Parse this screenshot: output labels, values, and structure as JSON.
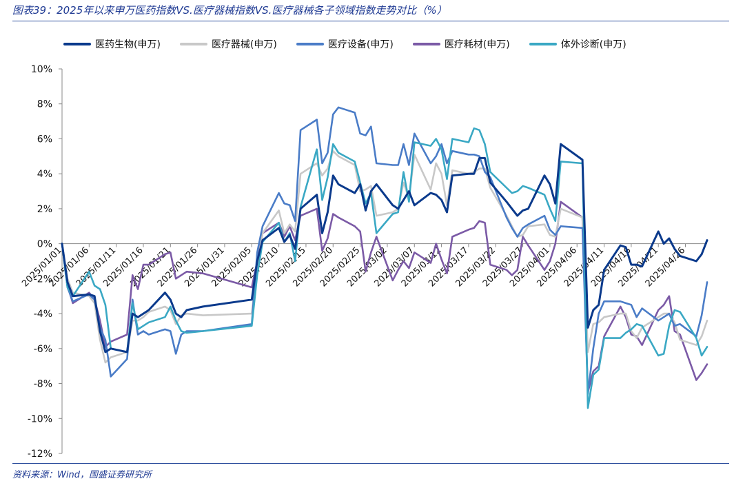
{
  "header": {
    "title": "图表39：2025年以来申万医药指数VS.医疗器械指数VS.医疗器械各子领域指数走势对比（%）"
  },
  "footer": {
    "source": "资料来源：Wind，国盛证券研究所"
  },
  "chart_data": {
    "type": "line",
    "yunit": "%",
    "ylim": [
      -12,
      10
    ],
    "yticks": [
      -12,
      -10,
      -8,
      -6,
      -4,
      -2,
      0,
      2,
      4,
      6,
      8,
      10
    ],
    "ytick_labels": [
      "-12%",
      "-10%",
      "-8%",
      "-6%",
      "-4%",
      "-2%",
      "0%",
      "2%",
      "4%",
      "6%",
      "8%",
      "10%"
    ],
    "xlim": [
      "2025-01-01",
      "2025-04-30"
    ],
    "xtick_dates": [
      "2025-01-01",
      "2025-01-06",
      "2025-01-11",
      "2025-01-16",
      "2025-01-21",
      "2025-01-26",
      "2025-01-31",
      "2025-02-05",
      "2025-02-10",
      "2025-02-15",
      "2025-02-20",
      "2025-02-25",
      "2025-03-02",
      "2025-03-07",
      "2025-03-12",
      "2025-03-17",
      "2025-03-22",
      "2025-03-27",
      "2025-04-01",
      "2025-04-06",
      "2025-04-11",
      "2025-04-16",
      "2025-04-21",
      "2025-04-26"
    ],
    "xtick_labels": [
      "2025/01/01",
      "2025/01/06",
      "2025/01/11",
      "2025/01/16",
      "2025/01/21",
      "2025/01/26",
      "2025/01/31",
      "2025/02/05",
      "2025/02/10",
      "2025/02/15",
      "2025/02/20",
      "2025/02/25",
      "2025/03/02",
      "2025/03/07",
      "2025/03/12",
      "2025/03/17",
      "2025/03/22",
      "2025/03/27",
      "2025/04/01",
      "2025/04/06",
      "2025/04/11",
      "2025/04/16",
      "2025/04/21",
      "2025/04/26"
    ],
    "legend_position": "top",
    "grid": false,
    "x": [
      "2025-01-01",
      "2025-01-02",
      "2025-01-03",
      "2025-01-06",
      "2025-01-07",
      "2025-01-08",
      "2025-01-09",
      "2025-01-10",
      "2025-01-13",
      "2025-01-14",
      "2025-01-15",
      "2025-01-16",
      "2025-01-17",
      "2025-01-20",
      "2025-01-21",
      "2025-01-22",
      "2025-01-23",
      "2025-01-24",
      "2025-01-27",
      "2025-02-05",
      "2025-02-06",
      "2025-02-07",
      "2025-02-10",
      "2025-02-11",
      "2025-02-12",
      "2025-02-13",
      "2025-02-14",
      "2025-02-17",
      "2025-02-18",
      "2025-02-19",
      "2025-02-20",
      "2025-02-21",
      "2025-02-24",
      "2025-02-25",
      "2025-02-26",
      "2025-02-27",
      "2025-02-28",
      "2025-03-03",
      "2025-03-04",
      "2025-03-05",
      "2025-03-06",
      "2025-03-07",
      "2025-03-10",
      "2025-03-11",
      "2025-03-12",
      "2025-03-13",
      "2025-03-14",
      "2025-03-17",
      "2025-03-18",
      "2025-03-19",
      "2025-03-20",
      "2025-03-21",
      "2025-03-24",
      "2025-03-25",
      "2025-03-26",
      "2025-03-27",
      "2025-03-28",
      "2025-03-31",
      "2025-04-01",
      "2025-04-02",
      "2025-04-03",
      "2025-04-07",
      "2025-04-08",
      "2025-04-09",
      "2025-04-10",
      "2025-04-11",
      "2025-04-14",
      "2025-04-15",
      "2025-04-16",
      "2025-04-17",
      "2025-04-18",
      "2025-04-21",
      "2025-04-22",
      "2025-04-23",
      "2025-04-24",
      "2025-04-25",
      "2025-04-28",
      "2025-04-29",
      "2025-04-30"
    ],
    "series": [
      {
        "name": "医药生物(申万)",
        "color": "#0b3a8c",
        "values": [
          0,
          -2.2,
          -3.0,
          -2.9,
          -3.0,
          -5.0,
          -6.2,
          -6.0,
          -6.2,
          -4.0,
          -4.2,
          -4.0,
          -3.8,
          -2.8,
          -3.2,
          -4.0,
          -4.2,
          -3.8,
          -3.6,
          -3.2,
          -1.0,
          0.2,
          0.9,
          0.1,
          0.5,
          -0.3,
          2.0,
          2.8,
          0.6,
          1.8,
          3.9,
          3.4,
          2.9,
          3.4,
          1.9,
          3.0,
          3.4,
          2.2,
          2.0,
          2.5,
          3.0,
          2.2,
          2.9,
          2.8,
          2.5,
          1.8,
          3.9,
          4.0,
          4.0,
          4.9,
          4.9,
          3.5,
          2.4,
          2.0,
          1.6,
          1.9,
          2.0,
          3.9,
          3.4,
          2.3,
          5.7,
          4.8,
          -4.8,
          -3.8,
          -3.5,
          -1.5,
          -0.1,
          -0.2,
          -1.2,
          -1.2,
          -1.3,
          0.7,
          0.0,
          0.3,
          -0.3,
          -0.7,
          -1.0,
          -0.6,
          0.2
        ]
      },
      {
        "name": "医疗器械(申万)",
        "color": "#c8c8c8",
        "values": [
          0,
          -2.0,
          -2.8,
          -3.0,
          -3.4,
          -5.5,
          -6.8,
          -6.5,
          -6.2,
          -4.4,
          -4.4,
          -4.2,
          -3.9,
          -3.6,
          -3.8,
          -4.6,
          -4.1,
          -4.0,
          -4.1,
          -4.0,
          -1.2,
          0.6,
          1.9,
          0.6,
          1.1,
          0.7,
          4.0,
          4.6,
          3.9,
          4.3,
          5.3,
          5.0,
          4.5,
          3.0,
          3.1,
          3.3,
          1.6,
          1.8,
          2.0,
          3.5,
          2.6,
          5.1,
          3.1,
          4.6,
          4.0,
          2.2,
          4.2,
          4.0,
          4.1,
          4.3,
          4.3,
          3.2,
          1.6,
          1.0,
          0.4,
          0.5,
          1.0,
          1.1,
          0.5,
          0.4,
          2.0,
          1.5,
          -6.2,
          -4.6,
          -4.5,
          -4.2,
          -4.0,
          -4.0,
          -5.0,
          -5.4,
          -4.8,
          -4.2,
          -4.0,
          -4.0,
          -4.5,
          -5.5,
          -5.8,
          -5.3,
          -4.4
        ]
      },
      {
        "name": "医疗设备(申万)",
        "color": "#4a7cc7",
        "values": [
          0,
          -2.5,
          -3.3,
          -2.9,
          -3.2,
          -4.8,
          -5.5,
          -7.6,
          -6.6,
          -3.2,
          -5.2,
          -5.0,
          -5.2,
          -4.9,
          -5.0,
          -6.3,
          -5.2,
          -5.0,
          -5.0,
          -4.6,
          -0.5,
          1.0,
          2.9,
          2.3,
          2.2,
          1.3,
          6.5,
          7.1,
          4.6,
          5.2,
          7.4,
          7.8,
          7.5,
          6.3,
          6.2,
          6.7,
          4.6,
          4.5,
          4.5,
          5.7,
          4.5,
          6.3,
          4.6,
          5.0,
          5.7,
          4.6,
          5.3,
          5.1,
          5.1,
          5.0,
          4.1,
          3.8,
          1.5,
          0.9,
          0.4,
          0.9,
          1.1,
          1.6,
          0.8,
          0.5,
          1.0,
          0.9,
          -8.6,
          -6.0,
          -4.0,
          -3.3,
          -3.3,
          -3.4,
          -3.5,
          -4.2,
          -3.7,
          -4.4,
          -4.2,
          -4.0,
          -4.7,
          -4.6,
          -5.3,
          -4.1,
          -2.2
        ]
      },
      {
        "name": "医疗耗材(申万)",
        "color": "#7b5aa6",
        "values": [
          0,
          -2.4,
          -3.4,
          -2.8,
          -3.2,
          -4.4,
          -5.9,
          -5.6,
          -5.2,
          -1.8,
          -2.6,
          -1.2,
          -1.2,
          -0.6,
          -0.5,
          -2.0,
          -1.8,
          -1.6,
          -1.7,
          -2.5,
          -1.0,
          0.6,
          1.2,
          0.4,
          1.0,
          0.2,
          1.6,
          2.0,
          -0.4,
          0.3,
          1.7,
          1.5,
          1.0,
          0.7,
          -1.6,
          -0.5,
          0.4,
          -2.1,
          -1.5,
          -1.0,
          -1.4,
          -0.5,
          -1.1,
          0.0,
          -0.9,
          -1.7,
          0.4,
          0.8,
          0.9,
          1.3,
          1.2,
          -1.2,
          -1.5,
          -1.8,
          -1.5,
          0.4,
          -0.1,
          -1.5,
          -1.0,
          0.0,
          2.4,
          1.5,
          -8.5,
          -7.3,
          -7.0,
          -5.3,
          -3.6,
          -4.2,
          -5.2,
          -5.3,
          -5.8,
          -3.8,
          -3.5,
          -3.0,
          -5.0,
          -5.2,
          -7.8,
          -7.4,
          -6.9
        ]
      },
      {
        "name": "体外诊断(申万)",
        "color": "#3aa8c4",
        "values": [
          0,
          -2.5,
          -3.0,
          -1.6,
          -2.4,
          -2.6,
          -3.5,
          -6.0,
          -6.2,
          -3.4,
          -4.9,
          -4.7,
          -4.5,
          -4.2,
          -3.6,
          -4.4,
          -5.0,
          -5.1,
          -5.0,
          -4.7,
          -1.8,
          0.1,
          1.2,
          0.1,
          0.6,
          -1.0,
          2.1,
          5.4,
          2.5,
          3.8,
          5.7,
          5.2,
          4.7,
          3.5,
          2.3,
          2.9,
          0.6,
          1.7,
          1.8,
          4.1,
          2.4,
          5.8,
          5.6,
          6.0,
          5.4,
          3.7,
          6.0,
          5.8,
          6.6,
          6.5,
          5.7,
          4.1,
          3.2,
          2.9,
          3.0,
          3.3,
          3.2,
          2.8,
          2.0,
          1.3,
          4.7,
          4.6,
          -9.4,
          -7.5,
          -7.2,
          -5.4,
          -5.4,
          -5.1,
          -4.9,
          -4.6,
          -4.7,
          -6.4,
          -6.3,
          -4.7,
          -3.8,
          -3.9,
          -5.4,
          -6.4,
          -5.9
        ]
      }
    ]
  }
}
